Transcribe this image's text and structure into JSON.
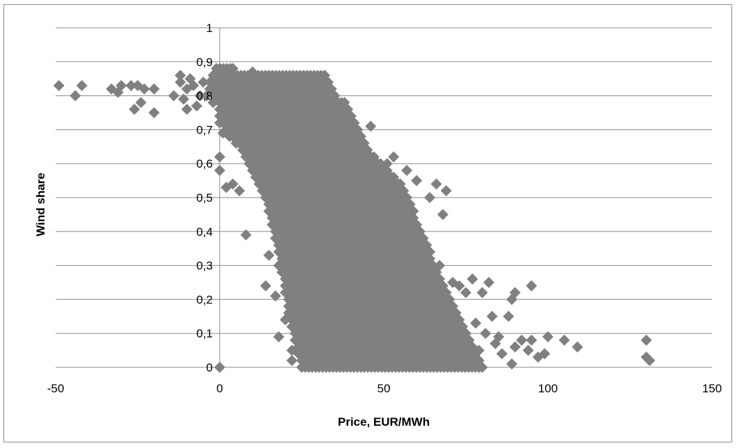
{
  "chart_data": {
    "type": "scatter",
    "title": "",
    "xlabel": "Price, EUR/MWh",
    "ylabel": "Wind share",
    "xlim": [
      -50,
      150
    ],
    "ylim": [
      0,
      1
    ],
    "x_ticks": [
      -50,
      0,
      50,
      100,
      150
    ],
    "x_tick_labels": [
      "-50",
      "0",
      "50",
      "100",
      "150"
    ],
    "y_ticks": [
      0,
      0.1,
      0.2,
      0.3,
      0.4,
      0.5,
      0.6,
      0.7,
      0.8,
      0.9,
      1
    ],
    "y_tick_labels": [
      "0",
      "0,1",
      "0,2",
      "0,3",
      "0,4",
      "0,5",
      "0,6",
      "0,7",
      "0,8",
      "0,9",
      "1"
    ],
    "grid": "horizontal",
    "legend": "none",
    "marker": "diamond",
    "marker_color": "#808080",
    "series": [
      {
        "values": [
          [
            -49,
            0.83
          ],
          [
            -44,
            0.8
          ],
          [
            -42,
            0.83
          ],
          [
            -33,
            0.82
          ],
          [
            -31,
            0.81
          ],
          [
            -30,
            0.83
          ],
          [
            -27,
            0.83
          ],
          [
            -26,
            0.76
          ],
          [
            -25,
            0.83
          ],
          [
            -24,
            0.78
          ],
          [
            -23,
            0.82
          ],
          [
            -20,
            0.75
          ],
          [
            -20,
            0.82
          ],
          [
            -14,
            0.8
          ],
          [
            -12,
            0.86
          ],
          [
            -12,
            0.84
          ],
          [
            -11,
            0.79
          ],
          [
            -10,
            0.76
          ],
          [
            -10,
            0.82
          ],
          [
            -9,
            0.85
          ],
          [
            -8,
            0.83
          ],
          [
            -7,
            0.77
          ],
          [
            -6,
            0.8
          ],
          [
            -5,
            0.84
          ],
          [
            -4,
            0.8
          ],
          [
            -3,
            0.82
          ],
          [
            -2,
            0.78
          ],
          [
            -1,
            0.86
          ],
          [
            0,
            0.88
          ],
          [
            0,
            0.72
          ],
          [
            0,
            0.58
          ],
          [
            0,
            0.62
          ],
          [
            0,
            0
          ],
          [
            1,
            0.69
          ],
          [
            2,
            0.53
          ],
          [
            2,
            0.75
          ],
          [
            3,
            0.72
          ],
          [
            4,
            0.54
          ],
          [
            5,
            0.84
          ],
          [
            6,
            0.52
          ],
          [
            7,
            0.7
          ],
          [
            9,
            0.62
          ],
          [
            8,
            0.39
          ],
          [
            10,
            0.87
          ],
          [
            11,
            0.72
          ],
          [
            12,
            0.85
          ],
          [
            13,
            0.6
          ],
          [
            14,
            0.24
          ],
          [
            15,
            0.86
          ],
          [
            15,
            0.33
          ],
          [
            16,
            0.55
          ],
          [
            17,
            0.21
          ],
          [
            17,
            0.82
          ],
          [
            18,
            0.09
          ],
          [
            18,
            0.3
          ],
          [
            19,
            0.7
          ],
          [
            19,
            0.45
          ],
          [
            20,
            0.14
          ],
          [
            20,
            0.6
          ],
          [
            21,
            0.28
          ],
          [
            21,
            0.84
          ],
          [
            22,
            0.05
          ],
          [
            22,
            0.02
          ],
          [
            23,
            0.36
          ],
          [
            24,
            0.17
          ],
          [
            25,
            0.5
          ],
          [
            25,
            0.75
          ],
          [
            26,
            0.03
          ],
          [
            27,
            0.2
          ],
          [
            27,
            0.65
          ],
          [
            28,
            0.1
          ],
          [
            28,
            0.85
          ],
          [
            29,
            0.4
          ],
          [
            30,
            0.02
          ],
          [
            31,
            0.3
          ],
          [
            31,
            0.55
          ],
          [
            32,
            0.84
          ],
          [
            33,
            0.12
          ],
          [
            34,
            0.47
          ],
          [
            35,
            0.01
          ],
          [
            35,
            0.76
          ],
          [
            36,
            0.25
          ],
          [
            37,
            0.6
          ],
          [
            38,
            0.05
          ],
          [
            39,
            0.35
          ],
          [
            40,
            0.7
          ],
          [
            40,
            0.15
          ],
          [
            41,
            0.5
          ],
          [
            42,
            0.02
          ],
          [
            43,
            0.28
          ],
          [
            44,
            0.64
          ],
          [
            45,
            0.1
          ],
          [
            45,
            0.42
          ],
          [
            46,
            0.71
          ],
          [
            47,
            0.2
          ],
          [
            48,
            0.55
          ],
          [
            49,
            0.03
          ],
          [
            50,
            0.35
          ],
          [
            51,
            0.6
          ],
          [
            52,
            0.15
          ],
          [
            53,
            0.62
          ],
          [
            54,
            0.45
          ],
          [
            55,
            0.02
          ],
          [
            56,
            0.3
          ],
          [
            57,
            0.58
          ],
          [
            58,
            0.1
          ],
          [
            59,
            0.4
          ],
          [
            60,
            0.55
          ],
          [
            61,
            0.2
          ],
          [
            62,
            0.05
          ],
          [
            63,
            0.35
          ],
          [
            64,
            0.5
          ],
          [
            65,
            0.15
          ],
          [
            66,
            0.54
          ],
          [
            67,
            0.3
          ],
          [
            68,
            0.45
          ],
          [
            69,
            0.52
          ],
          [
            70,
            0.02
          ],
          [
            70,
            0.2
          ],
          [
            71,
            0.25
          ],
          [
            72,
            0.1
          ],
          [
            73,
            0.24
          ],
          [
            75,
            0.22
          ],
          [
            76,
            0.03
          ],
          [
            77,
            0.26
          ],
          [
            78,
            0.13
          ],
          [
            79,
            0.05
          ],
          [
            80,
            0.22
          ],
          [
            81,
            0.1
          ],
          [
            82,
            0.25
          ],
          [
            83,
            0.15
          ],
          [
            84,
            0.07
          ],
          [
            85,
            0.09
          ],
          [
            86,
            0.04
          ],
          [
            88,
            0.15
          ],
          [
            89,
            0.01
          ],
          [
            89,
            0.2
          ],
          [
            90,
            0.22
          ],
          [
            90,
            0.06
          ],
          [
            92,
            0.08
          ],
          [
            94,
            0.05
          ],
          [
            95,
            0.08
          ],
          [
            95,
            0.24
          ],
          [
            97,
            0.03
          ],
          [
            99,
            0.04
          ],
          [
            100,
            0.09
          ],
          [
            105,
            0.08
          ],
          [
            109,
            0.06
          ],
          [
            130,
            0.08
          ],
          [
            130,
            0.03
          ],
          [
            131,
            0.02
          ]
        ]
      }
    ],
    "dense_regions": [
      {
        "y": 0.88,
        "xmin": -1,
        "xmax": 4
      },
      {
        "y": 0.86,
        "xmin": -2,
        "xmax": 32
      },
      {
        "y": 0.84,
        "xmin": -3,
        "xmax": 33
      },
      {
        "y": 0.82,
        "xmin": -2,
        "xmax": 34
      },
      {
        "y": 0.8,
        "xmin": -1,
        "xmax": 35
      },
      {
        "y": 0.78,
        "xmin": 0,
        "xmax": 38
      },
      {
        "y": 0.76,
        "xmin": 0,
        "xmax": 39
      },
      {
        "y": 0.74,
        "xmin": 0,
        "xmax": 40
      },
      {
        "y": 0.72,
        "xmin": 1,
        "xmax": 41
      },
      {
        "y": 0.7,
        "xmin": 2,
        "xmax": 42
      },
      {
        "y": 0.68,
        "xmin": 3,
        "xmax": 43
      },
      {
        "y": 0.66,
        "xmin": 5,
        "xmax": 44
      },
      {
        "y": 0.64,
        "xmin": 7,
        "xmax": 45
      },
      {
        "y": 0.62,
        "xmin": 8,
        "xmax": 47
      },
      {
        "y": 0.6,
        "xmin": 9,
        "xmax": 49
      },
      {
        "y": 0.58,
        "xmin": 10,
        "xmax": 51
      },
      {
        "y": 0.56,
        "xmin": 11,
        "xmax": 53
      },
      {
        "y": 0.54,
        "xmin": 12,
        "xmax": 55
      },
      {
        "y": 0.52,
        "xmin": 13,
        "xmax": 56
      },
      {
        "y": 0.5,
        "xmin": 14,
        "xmax": 57
      },
      {
        "y": 0.48,
        "xmin": 15,
        "xmax": 58
      },
      {
        "y": 0.46,
        "xmin": 15,
        "xmax": 59
      },
      {
        "y": 0.44,
        "xmin": 16,
        "xmax": 59
      },
      {
        "y": 0.42,
        "xmin": 16,
        "xmax": 60
      },
      {
        "y": 0.4,
        "xmin": 17,
        "xmax": 61
      },
      {
        "y": 0.38,
        "xmin": 17,
        "xmax": 62
      },
      {
        "y": 0.36,
        "xmin": 18,
        "xmax": 63
      },
      {
        "y": 0.34,
        "xmin": 18,
        "xmax": 64
      },
      {
        "y": 0.32,
        "xmin": 19,
        "xmax": 64
      },
      {
        "y": 0.3,
        "xmin": 19,
        "xmax": 65
      },
      {
        "y": 0.28,
        "xmin": 19,
        "xmax": 66
      },
      {
        "y": 0.26,
        "xmin": 20,
        "xmax": 67
      },
      {
        "y": 0.24,
        "xmin": 20,
        "xmax": 68
      },
      {
        "y": 0.22,
        "xmin": 20,
        "xmax": 69
      },
      {
        "y": 0.2,
        "xmin": 21,
        "xmax": 70
      },
      {
        "y": 0.18,
        "xmin": 21,
        "xmax": 71
      },
      {
        "y": 0.16,
        "xmin": 21,
        "xmax": 72
      },
      {
        "y": 0.14,
        "xmin": 22,
        "xmax": 73
      },
      {
        "y": 0.12,
        "xmin": 22,
        "xmax": 74
      },
      {
        "y": 0.1,
        "xmin": 23,
        "xmax": 75
      },
      {
        "y": 0.08,
        "xmin": 23,
        "xmax": 76
      },
      {
        "y": 0.06,
        "xmin": 24,
        "xmax": 77
      },
      {
        "y": 0.04,
        "xmin": 24,
        "xmax": 78
      },
      {
        "y": 0.02,
        "xmin": 25,
        "xmax": 79
      },
      {
        "y": 0.0,
        "xmin": 25,
        "xmax": 80
      }
    ]
  }
}
